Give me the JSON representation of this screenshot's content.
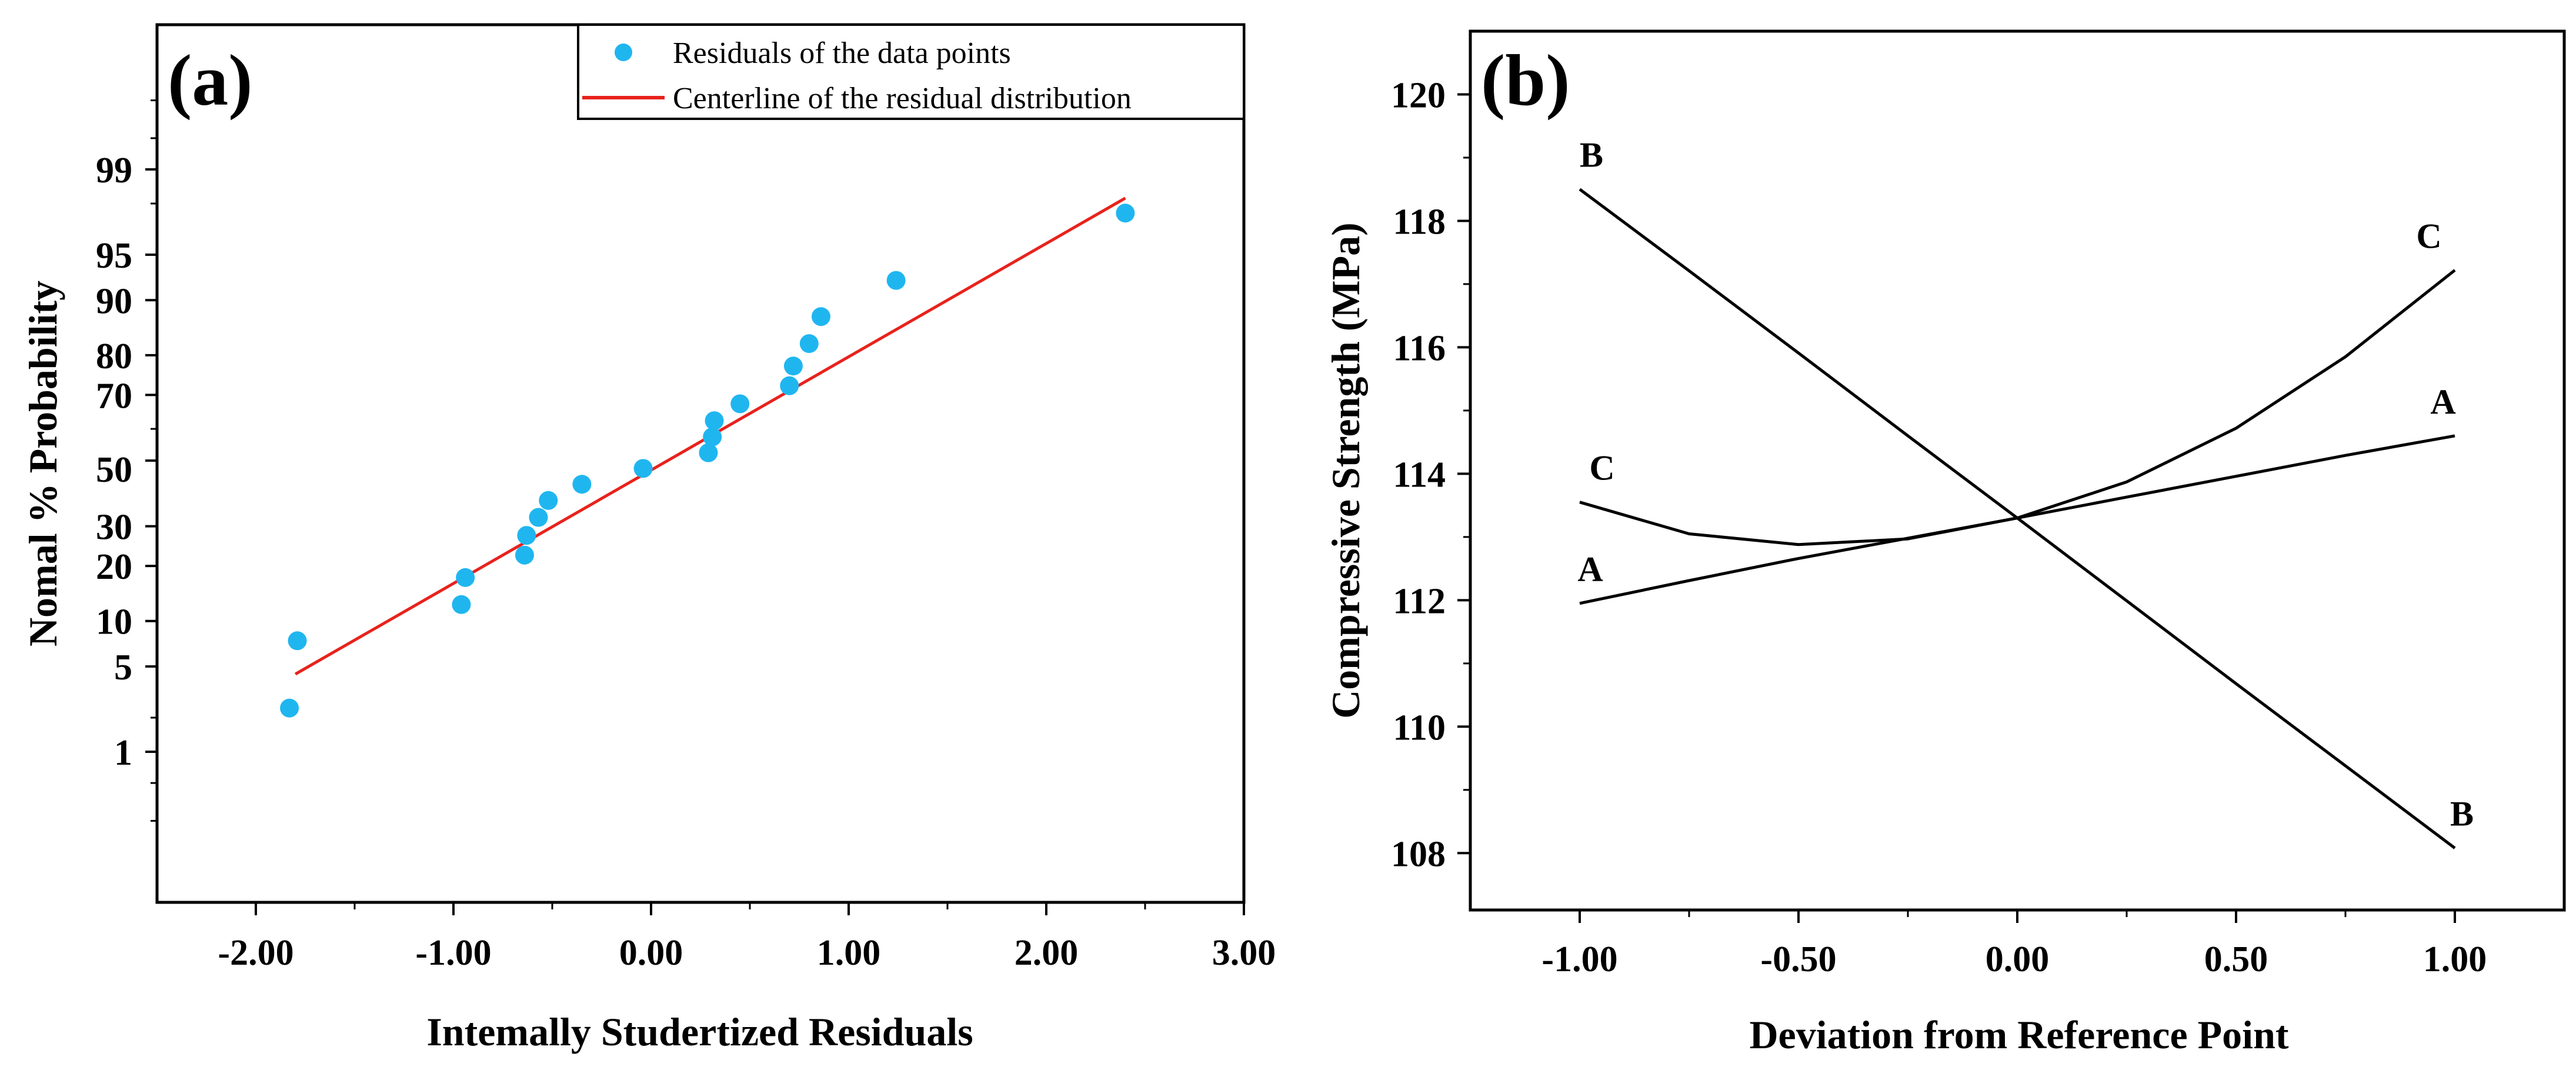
{
  "chart_data": [
    {
      "type": "scatter",
      "panel_label": "(a)",
      "xlabel": "Intemally Studertized Residuals",
      "ylabel": "Nomal % Probability",
      "xlim": [
        -2.5,
        3.0
      ],
      "xticks": [
        "-2.00",
        "-1.00",
        "0.00",
        "1.00",
        "2.00",
        "3.00"
      ],
      "y_scale": "normal-probability",
      "ylim": [
        0.15,
        99.9
      ],
      "yticks": [
        "1",
        "5",
        "10",
        "20",
        "30",
        "50",
        "70",
        "80",
        "90",
        "95",
        "99"
      ],
      "legend_placement": "top-right",
      "colors": {
        "points": "#1fb6f0",
        "line": "#e8221c"
      },
      "series": [
        {
          "name": "Residuals of the data points",
          "kind": "points",
          "x": [
            -1.83,
            -1.79,
            -0.96,
            -0.94,
            -0.64,
            -0.63,
            -0.57,
            -0.52,
            -0.35,
            -0.04,
            0.29,
            0.31,
            0.32,
            0.45,
            0.7,
            0.72,
            0.8,
            0.86,
            1.24,
            2.4
          ],
          "y": [
            2.4,
            7.5,
            12.5,
            17.5,
            22.5,
            27.5,
            32.5,
            37.5,
            42.5,
            47.5,
            52.5,
            57.5,
            62.5,
            67.5,
            72.5,
            77.5,
            82.5,
            87.5,
            92.5,
            97.6
          ]
        },
        {
          "name": "Centerline of the residual distribution",
          "kind": "line",
          "x": [
            -1.8,
            2.4
          ],
          "y": [
            4.4,
            98.2
          ]
        }
      ]
    },
    {
      "type": "line",
      "panel_label": "(b)",
      "xlabel": "Deviation from Reference Point",
      "ylabel": "Compressive Strength (MPa)",
      "xlim": [
        -1.25,
        1.25
      ],
      "xticks": [
        "-1.00",
        "-0.50",
        "0.00",
        "0.50",
        "1.00"
      ],
      "ylim": [
        107.1,
        121.0
      ],
      "yticks": [
        "108",
        "110",
        "112",
        "114",
        "116",
        "118",
        "120"
      ],
      "x": [
        -1.0,
        -0.75,
        -0.5,
        -0.25,
        0.0,
        0.25,
        0.5,
        0.75,
        1.0
      ],
      "series": [
        {
          "name": "A",
          "values": [
            111.95,
            112.31,
            112.66,
            112.98,
            113.3,
            113.63,
            113.96,
            114.29,
            114.6
          ]
        },
        {
          "name": "B",
          "values": [
            118.5,
            117.21,
            115.91,
            114.6,
            113.3,
            111.99,
            110.68,
            109.38,
            108.08
          ]
        },
        {
          "name": "C",
          "values": [
            113.55,
            113.05,
            112.88,
            112.97,
            113.3,
            113.87,
            114.72,
            115.85,
            117.22
          ]
        }
      ],
      "curve_labels": [
        {
          "series": "B",
          "end": "start",
          "text": "B"
        },
        {
          "series": "B",
          "end": "end",
          "text": "B"
        },
        {
          "series": "C",
          "end": "start",
          "text": "C"
        },
        {
          "series": "C",
          "end": "end",
          "text": "C"
        },
        {
          "series": "A",
          "end": "start",
          "text": "A"
        },
        {
          "series": "A",
          "end": "end",
          "text": "A"
        }
      ]
    }
  ]
}
